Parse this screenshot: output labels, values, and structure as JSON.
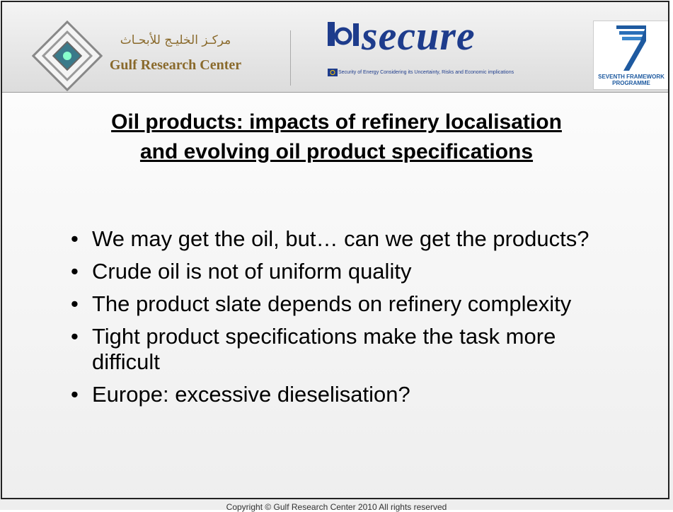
{
  "header": {
    "org_arabic": "مركـز الخليـج للأبحـاث",
    "org_name": "Gulf Research Center",
    "project_logo": "secure",
    "project_tagline": "Security of Energy Considering its Uncertainty, Risks and Economic implications",
    "programme": "SEVENTH FRAMEWORK PROGRAMME"
  },
  "title": [
    "Oil products: impacts of refinery localisation",
    "and evolving oil product specifications"
  ],
  "bullets": [
    "We may get the oil, but… can we get the products?",
    "Crude oil is not of uniform quality",
    "The product slate depends on refinery complexity",
    "Tight product specifications make the task more difficult",
    "Europe: excessive dieselisation?"
  ],
  "footer": "Copyright © Gulf Research Center 2010 All rights reserved"
}
